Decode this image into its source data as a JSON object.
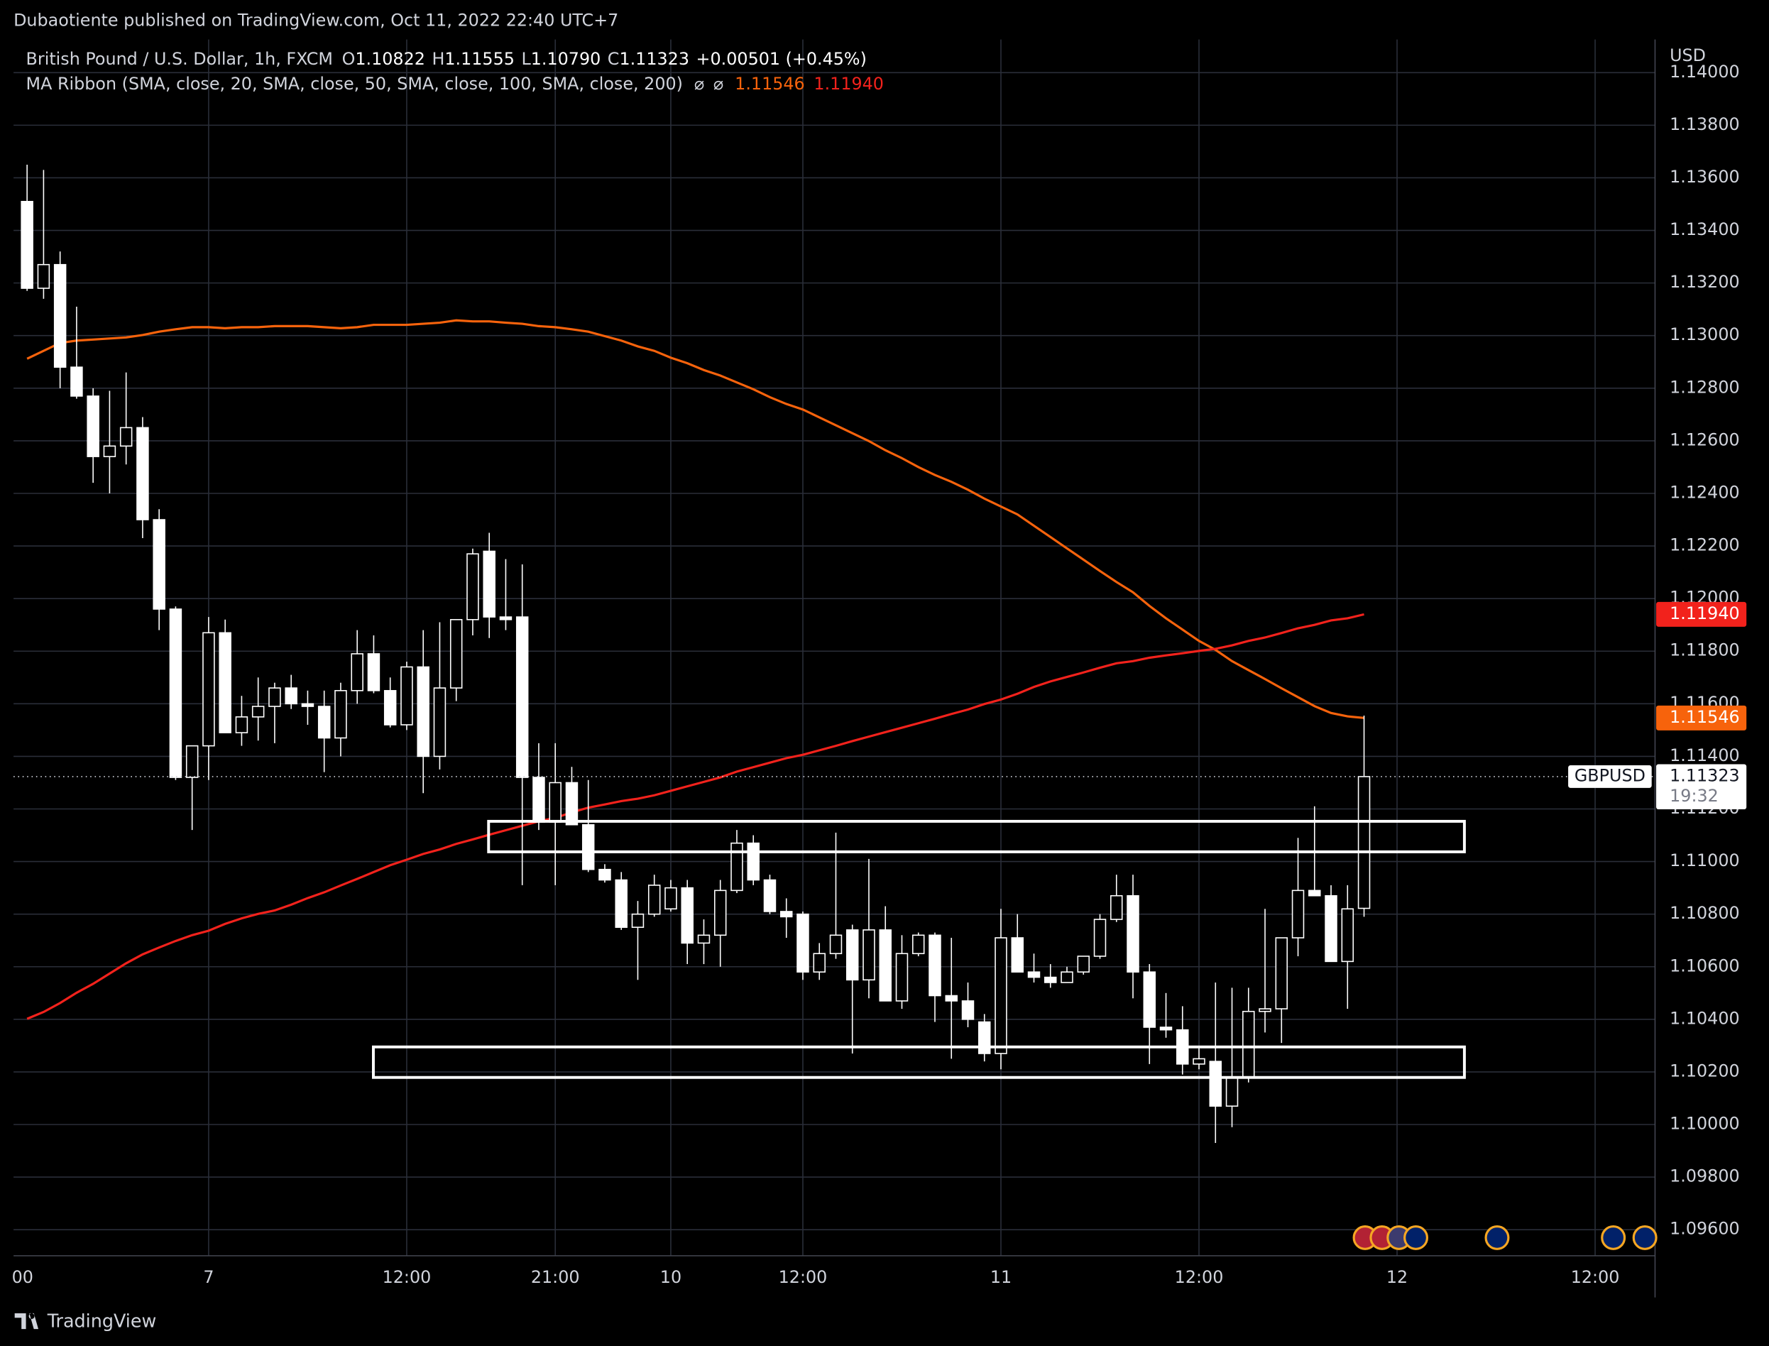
{
  "header": {
    "publisher": "Dubaotiente published on TradingView.com, Oct 11, 2022 22:40 UTC+7"
  },
  "chart_data": {
    "type": "candlestick",
    "title": "British Pound / U.S. Dollar, 1h, FXCM",
    "ohlc_legend": [
      {
        "label": "O",
        "value": "1.10822"
      },
      {
        "label": "H",
        "value": "1.11555"
      },
      {
        "label": "L",
        "value": "1.10790"
      },
      {
        "label": "C",
        "value": "1.11323"
      }
    ],
    "change": "+0.00501 (+0.45%)",
    "indicator": "MA Ribbon (SMA, close, 20, SMA, close, 50, SMA, close, 100, SMA, close, 200)",
    "indicator_icons": [
      "⌀",
      "⌀"
    ],
    "symbol": "GBPUSD",
    "currency": "USD",
    "countdown": "19:32",
    "up_color": "#000000",
    "down_color": "#ffffff",
    "wick_color": "#ffffff",
    "grid": true,
    "xlim": [
      -0.82,
      98.63
    ],
    "ylim": [
      1.09501,
      1.14126
    ],
    "yticks": [
      {
        "value": 1.096,
        "label": "1.09600"
      },
      {
        "value": 1.098,
        "label": "1.09800"
      },
      {
        "value": 1.1,
        "label": "1.10000"
      },
      {
        "value": 1.102,
        "label": "1.10200"
      },
      {
        "value": 1.104,
        "label": "1.10400"
      },
      {
        "value": 1.106,
        "label": "1.10600"
      },
      {
        "value": 1.108,
        "label": "1.10800"
      },
      {
        "value": 1.11,
        "label": "1.11000"
      },
      {
        "value": 1.112,
        "label": "1.11200"
      },
      {
        "value": 1.114,
        "label": "1.11400"
      },
      {
        "value": 1.116,
        "label": "1.11600"
      },
      {
        "value": 1.118,
        "label": "1.11800"
      },
      {
        "value": 1.12,
        "label": "1.12000"
      },
      {
        "value": 1.122,
        "label": "1.12200"
      },
      {
        "value": 1.124,
        "label": "1.12400"
      },
      {
        "value": 1.126,
        "label": "1.12600"
      },
      {
        "value": 1.128,
        "label": "1.12800"
      },
      {
        "value": 1.13,
        "label": "1.13000"
      },
      {
        "value": 1.132,
        "label": "1.13200"
      },
      {
        "value": 1.134,
        "label": "1.13400"
      },
      {
        "value": 1.136,
        "label": "1.13600"
      },
      {
        "value": 1.138,
        "label": "1.13800"
      },
      {
        "value": 1.14,
        "label": "1.14000"
      }
    ],
    "xticks": [
      {
        "value": -1,
        "label": "00"
      },
      {
        "value": 11,
        "label": "7"
      },
      {
        "value": 23,
        "label": "12:00"
      },
      {
        "value": 32,
        "label": "21:00"
      },
      {
        "value": 39,
        "label": "10"
      },
      {
        "value": 47,
        "label": "12:00"
      },
      {
        "value": 59,
        "label": "11"
      },
      {
        "value": 71,
        "label": "12:00"
      },
      {
        "value": 83,
        "label": "12"
      },
      {
        "value": 95,
        "label": "12:00"
      }
    ],
    "categories": [
      null,
      null,
      null,
      null,
      null,
      null,
      null,
      null,
      null,
      null,
      null,
      null,
      null,
      null,
      null,
      null,
      null,
      null,
      null,
      null,
      null,
      null,
      null,
      null,
      null,
      null,
      null,
      null,
      null,
      null,
      null,
      null,
      null,
      null,
      null,
      null,
      null,
      null,
      null,
      null,
      null,
      null,
      null,
      null,
      null,
      null,
      null,
      null,
      null,
      null,
      null,
      null,
      null,
      null,
      null,
      null,
      null,
      null,
      null,
      null,
      null,
      null,
      null,
      null,
      null,
      null,
      null,
      null,
      null,
      null,
      null,
      null,
      null,
      null,
      null,
      null,
      null,
      null,
      null,
      null,
      null,
      null
    ],
    "open": [
      1.1351,
      1.1318,
      1.1327,
      1.1288,
      1.1277,
      1.1254,
      1.1258,
      1.1265,
      1.123,
      1.1196,
      1.1132,
      1.1144,
      1.1187,
      1.1149,
      1.1155,
      1.1159,
      1.1166,
      1.116,
      1.1159,
      1.1147,
      1.1165,
      1.1179,
      1.1165,
      1.1152,
      1.1174,
      1.114,
      1.1166,
      1.1192,
      1.1218,
      1.1193,
      1.1193,
      1.1132,
      1.1115,
      1.113,
      1.1114,
      1.1097,
      1.1093,
      1.1075,
      1.108,
      1.1082,
      1.109,
      1.1069,
      1.1072,
      1.1089,
      1.1107,
      1.1093,
      1.1081,
      1.108,
      1.1058,
      1.1065,
      1.1074,
      1.1055,
      1.1074,
      1.1047,
      1.1065,
      1.1072,
      1.1049,
      1.1047,
      1.1039,
      1.1027,
      1.1071,
      1.1058,
      1.1056,
      1.1054,
      1.1058,
      1.1064,
      1.1078,
      1.1087,
      1.1058,
      1.1037,
      1.1036,
      1.1023,
      1.1024,
      1.1007,
      1.1018,
      1.1043,
      1.1044,
      1.1071,
      1.1089,
      1.1087,
      1.1062,
      1.10822
    ],
    "high": [
      1.1365,
      1.1363,
      1.1332,
      1.1311,
      1.128,
      1.1279,
      1.1286,
      1.1269,
      1.1234,
      1.1197,
      1.1144,
      1.1193,
      1.1192,
      1.1163,
      1.117,
      1.1168,
      1.1171,
      1.1165,
      1.1165,
      1.1168,
      1.1188,
      1.1186,
      1.117,
      1.1176,
      1.1188,
      1.1191,
      1.1192,
      1.1219,
      1.1225,
      1.1215,
      1.1213,
      1.1145,
      1.1145,
      1.1136,
      1.1131,
      1.1099,
      1.1096,
      1.1085,
      1.1095,
      1.1093,
      1.1093,
      1.1078,
      1.1093,
      1.1112,
      1.111,
      1.1095,
      1.1086,
      1.1081,
      1.1069,
      1.1111,
      1.1076,
      1.1101,
      1.1083,
      1.1072,
      1.1073,
      1.1073,
      1.1071,
      1.1054,
      1.1042,
      1.1082,
      1.108,
      1.1065,
      1.1061,
      1.106,
      1.1064,
      1.108,
      1.1095,
      1.1095,
      1.1061,
      1.105,
      1.1045,
      1.1029,
      1.1054,
      1.1052,
      1.1052,
      1.1082,
      1.1071,
      1.1109,
      1.1121,
      1.1091,
      1.1091,
      1.11555
    ],
    "low": [
      1.1317,
      1.1314,
      1.128,
      1.1276,
      1.1244,
      1.124,
      1.1251,
      1.1223,
      1.1188,
      1.1131,
      1.1112,
      1.1131,
      1.1149,
      1.1144,
      1.1146,
      1.1145,
      1.1158,
      1.1152,
      1.1134,
      1.114,
      1.116,
      1.1164,
      1.1151,
      1.115,
      1.1126,
      1.1135,
      1.1161,
      1.1186,
      1.1185,
      1.1188,
      1.1091,
      1.1112,
      1.1091,
      1.1114,
      1.1096,
      1.1092,
      1.1074,
      1.1055,
      1.1079,
      1.1081,
      1.1061,
      1.1061,
      1.106,
      1.1088,
      1.1091,
      1.108,
      1.1071,
      1.1055,
      1.1055,
      1.1063,
      1.1027,
      1.1048,
      1.1047,
      1.1044,
      1.1064,
      1.1039,
      1.1025,
      1.1037,
      1.1024,
      1.1021,
      1.1058,
      1.1054,
      1.1052,
      1.1054,
      1.1057,
      1.1063,
      1.1077,
      1.1048,
      1.1023,
      1.1033,
      1.1019,
      1.1021,
      1.0993,
      1.0999,
      1.1016,
      1.1035,
      1.1031,
      1.1064,
      1.1087,
      1.1062,
      1.1044,
      1.1079
    ],
    "close": [
      1.1318,
      1.1327,
      1.1288,
      1.1277,
      1.1254,
      1.1258,
      1.1265,
      1.123,
      1.1196,
      1.1132,
      1.1144,
      1.1187,
      1.1149,
      1.1155,
      1.1159,
      1.1166,
      1.116,
      1.1159,
      1.1147,
      1.1165,
      1.1179,
      1.1165,
      1.1152,
      1.1174,
      1.114,
      1.1166,
      1.1192,
      1.1217,
      1.1193,
      1.1192,
      1.1132,
      1.1115,
      1.113,
      1.1114,
      1.1097,
      1.1093,
      1.1075,
      1.108,
      1.1091,
      1.109,
      1.1069,
      1.1072,
      1.1089,
      1.1107,
      1.1093,
      1.1081,
      1.1079,
      1.1058,
      1.1065,
      1.1072,
      1.1055,
      1.1074,
      1.1047,
      1.1065,
      1.1072,
      1.1049,
      1.1047,
      1.104,
      1.1027,
      1.1071,
      1.1058,
      1.1056,
      1.1054,
      1.1058,
      1.1064,
      1.1078,
      1.1087,
      1.1058,
      1.1037,
      1.1036,
      1.1023,
      1.1025,
      1.1007,
      1.1018,
      1.1043,
      1.1044,
      1.1071,
      1.1089,
      1.1087,
      1.1062,
      1.1082,
      1.11323
    ],
    "series": [
      {
        "color": "#f7630c",
        "values": [
          1.12912,
          1.12942,
          1.12972,
          1.12981,
          1.12985,
          1.12989,
          1.12993,
          1.13002,
          1.13015,
          1.13024,
          1.13032,
          1.13032,
          1.13028,
          1.13032,
          1.13032,
          1.13036,
          1.13036,
          1.13036,
          1.13032,
          1.13028,
          1.13032,
          1.13041,
          1.13041,
          1.13041,
          1.13045,
          1.13049,
          1.13058,
          1.13054,
          1.13054,
          1.13049,
          1.13045,
          1.13036,
          1.13032,
          1.13024,
          1.13015,
          1.12998,
          1.12981,
          1.12959,
          1.12942,
          1.12916,
          1.12895,
          1.12869,
          1.12848,
          1.12822,
          1.12796,
          1.12766,
          1.1274,
          1.12719,
          1.12689,
          1.12659,
          1.12629,
          1.12599,
          1.12564,
          1.12534,
          1.125,
          1.1247,
          1.12444,
          1.12414,
          1.1238,
          1.1235,
          1.1232,
          1.12277,
          1.12234,
          1.12191,
          1.12148,
          1.12105,
          1.12063,
          1.12024,
          1.11972,
          1.11925,
          1.11882,
          1.11839,
          1.11805,
          1.11762,
          1.11728,
          1.11694,
          1.11659,
          1.11625,
          1.11591,
          1.11565,
          1.11552,
          1.11546
        ],
        "value_labels": [
          null,
          null,
          null,
          null,
          null,
          null,
          null,
          null,
          null,
          null,
          null,
          null,
          null,
          null,
          null,
          null,
          null,
          null,
          null,
          null,
          null,
          null,
          null,
          null,
          null,
          null,
          null,
          null,
          null,
          null,
          null,
          null,
          null,
          null,
          null,
          null,
          null,
          null,
          null,
          null,
          null,
          null,
          null,
          null,
          null,
          null,
          null,
          null,
          null,
          null,
          null,
          null,
          null,
          null,
          null,
          null,
          null,
          null,
          null,
          null,
          null,
          null,
          null,
          null,
          null,
          null,
          null,
          null,
          null,
          null,
          null,
          null,
          null,
          null,
          null,
          null,
          null,
          null,
          null,
          null,
          null,
          "1.11546"
        ]
      },
      {
        "color": "#f2221c",
        "values": [
          1.10402,
          1.10428,
          1.10462,
          1.10501,
          1.10535,
          1.10574,
          1.10613,
          1.10647,
          1.10673,
          1.10698,
          1.1072,
          1.10737,
          1.10763,
          1.10784,
          1.10801,
          1.10814,
          1.10836,
          1.10861,
          1.10883,
          1.10909,
          1.10934,
          1.1096,
          1.10986,
          1.11007,
          1.11029,
          1.11046,
          1.11067,
          1.11084,
          1.11102,
          1.11119,
          1.11136,
          1.11153,
          1.11166,
          1.11187,
          1.11205,
          1.11217,
          1.1123,
          1.11239,
          1.11252,
          1.11269,
          1.11286,
          1.11303,
          1.1132,
          1.11342,
          1.11359,
          1.11376,
          1.11393,
          1.11406,
          1.11423,
          1.1144,
          1.11458,
          1.11475,
          1.11492,
          1.11509,
          1.11526,
          1.11543,
          1.11561,
          1.11578,
          1.11599,
          1.11616,
          1.11638,
          1.11664,
          1.11685,
          1.11702,
          1.11719,
          1.11737,
          1.11754,
          1.11762,
          1.11775,
          1.11784,
          1.11792,
          1.11801,
          1.11809,
          1.11822,
          1.11839,
          1.11852,
          1.11869,
          1.11887,
          1.119,
          1.11917,
          1.11925,
          1.1194
        ],
        "value_labels": [
          null,
          null,
          null,
          null,
          null,
          null,
          null,
          null,
          null,
          null,
          null,
          null,
          null,
          null,
          null,
          null,
          null,
          null,
          null,
          null,
          null,
          null,
          null,
          null,
          null,
          null,
          null,
          null,
          null,
          null,
          null,
          null,
          null,
          null,
          null,
          null,
          null,
          null,
          null,
          null,
          null,
          null,
          null,
          null,
          null,
          null,
          null,
          null,
          null,
          null,
          null,
          null,
          null,
          null,
          null,
          null,
          null,
          null,
          null,
          null,
          null,
          null,
          null,
          null,
          null,
          null,
          null,
          null,
          null,
          null,
          null,
          null,
          null,
          null,
          null,
          null,
          null,
          null,
          null,
          null,
          null,
          "1.11940"
        ]
      }
    ],
    "zones": [
      {
        "x": [
          27.96,
          87.08
        ],
        "y": [
          1.11037,
          1.11153
        ]
      },
      {
        "x": [
          20.98,
          87.08
        ],
        "y": [
          1.10179,
          1.10295
        ]
      }
    ]
  },
  "footer": {
    "brand": "TradingView"
  }
}
